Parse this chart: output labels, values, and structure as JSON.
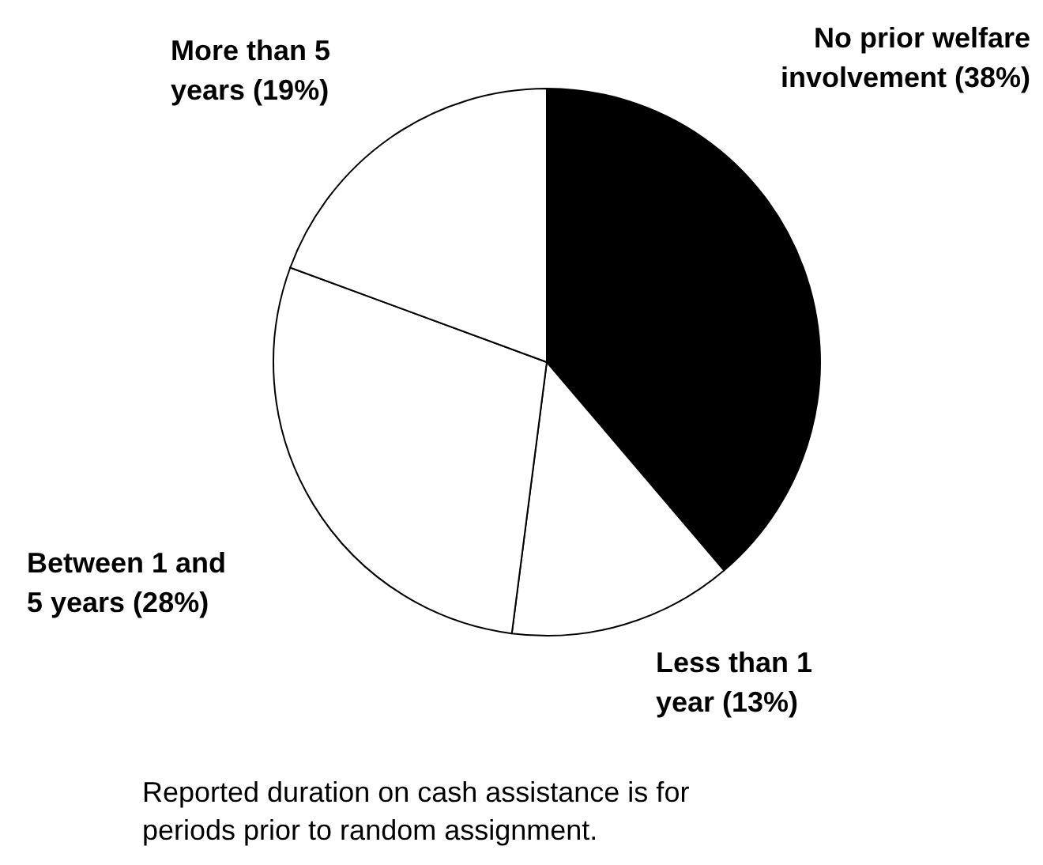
{
  "chart_data": {
    "type": "pie",
    "categories": [
      "No prior welfare involvement (38%)",
      "Less than 1 year (13%)",
      "Between 1 and 5 years (28%)",
      "More than 5 years (19%)"
    ],
    "values": [
      38,
      13,
      28,
      19
    ],
    "colors": [
      "#000000",
      "#ffffff",
      "#ffffff",
      "#ffffff"
    ],
    "annotations": [
      "Reported duration on cash assistance is for periods prior to random assignment."
    ]
  }
}
